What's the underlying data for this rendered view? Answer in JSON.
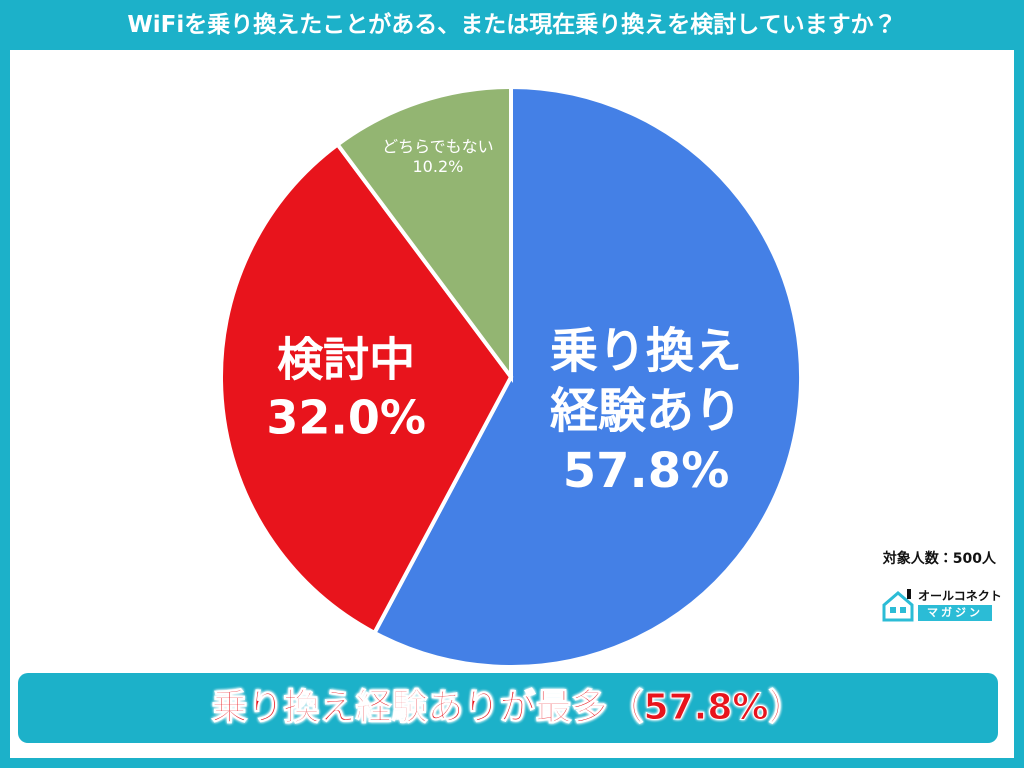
{
  "chart_data": {
    "type": "pie",
    "title": "WiFiを乗り換えたことがある、または現在乗り換えを検討していますか？",
    "categories": [
      "乗り換え経験あり",
      "検討中",
      "どちらでもない"
    ],
    "values": [
      57.8,
      32.0,
      10.2
    ],
    "value_labels": [
      "57.8%",
      "32.0%",
      "10.2%"
    ],
    "colors": [
      "#4480e6",
      "#e8141c",
      "#93b572"
    ],
    "sample_note": "対象人数：500人",
    "logo": {
      "top": "オールコネクト",
      "bottom": "マガジン"
    },
    "conclusion": "乗り換え経験ありが最多（57.8%）"
  }
}
